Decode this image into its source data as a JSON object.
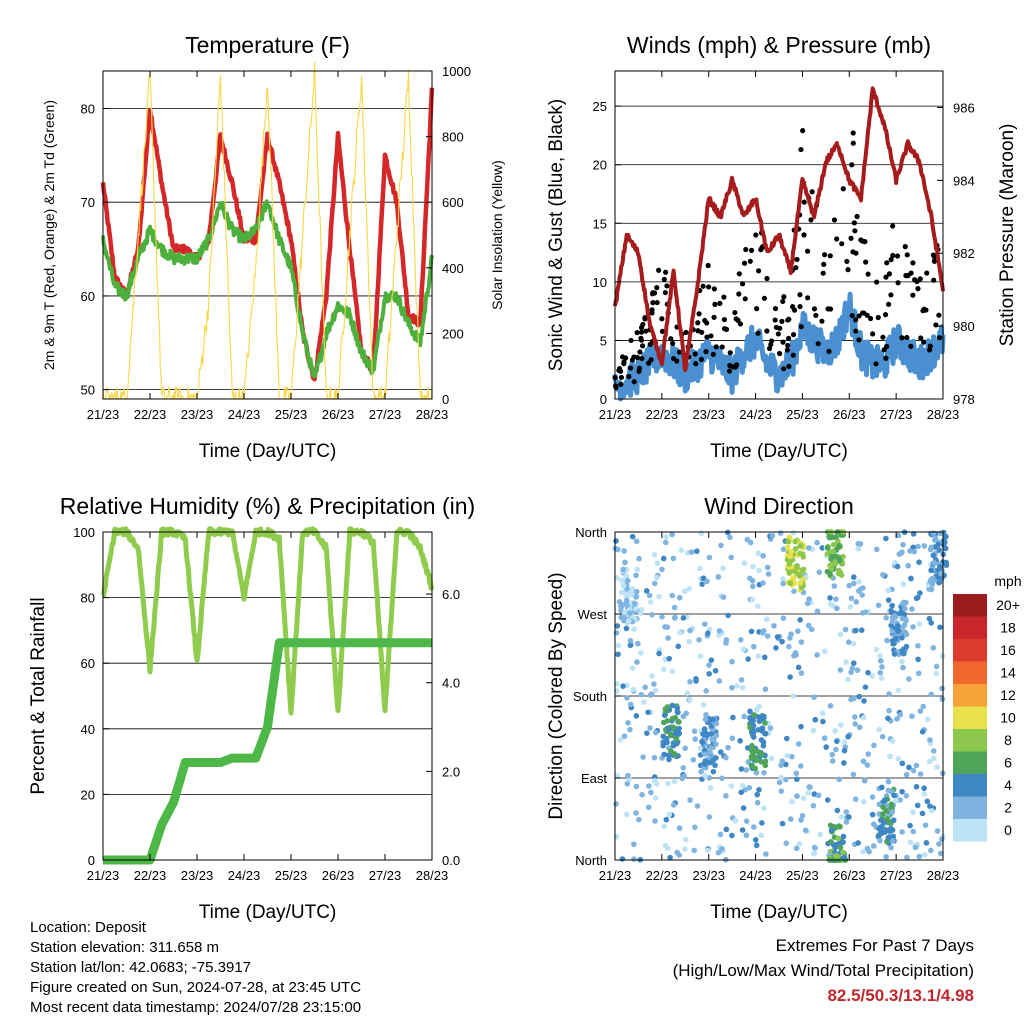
{
  "time_ticks": [
    "21/23",
    "22/23",
    "23/23",
    "24/23",
    "25/23",
    "26/23",
    "27/23",
    "28/23"
  ],
  "time_axis_label": "Time (Day/UTC)",
  "colors": {
    "temp_2m": "#d62728",
    "temp_9m": "#f07b2e",
    "dewpoint": "#4daf3c",
    "insolation": "#f9d74a",
    "wind": "#4a90d0",
    "gust": "#000000",
    "pressure": "#a61b1b",
    "rh": "#8fcc4e",
    "precip": "#4db848",
    "extremes": "#c0272d"
  },
  "chart_data": [
    {
      "id": "temperature",
      "type": "line",
      "title": "Temperature (F)",
      "xlabel": "Time (Day/UTC)",
      "ylabel": "2m & 9m T (Red, Orange) & 2m Td (Green)",
      "ylabel_right": "Solar Insolation (Yellow)",
      "ylim": [
        49,
        84
      ],
      "yticks": [
        "50",
        "60",
        "70",
        "80"
      ],
      "ylim_right": [
        0,
        1000
      ],
      "yticks_right": [
        "0",
        "200",
        "400",
        "600",
        "800",
        "1000"
      ],
      "x": [
        0,
        0.25,
        0.5,
        0.75,
        1,
        1.25,
        1.5,
        1.75,
        2,
        2.25,
        2.5,
        2.75,
        3,
        3.25,
        3.5,
        3.75,
        4,
        4.25,
        4.5,
        4.75,
        5,
        5.25,
        5.5,
        5.75,
        6,
        6.25,
        6.5,
        6.75,
        7
      ],
      "series": [
        {
          "name": "2m T",
          "values": [
            72,
            62,
            60,
            65,
            80,
            72,
            65,
            65,
            64,
            66,
            77,
            72,
            66,
            66,
            77,
            72,
            66,
            56,
            51,
            60,
            77,
            65,
            54,
            52,
            75,
            70,
            58,
            57,
            82
          ]
        },
        {
          "name": "2m Td",
          "values": [
            66,
            61,
            60,
            64,
            67,
            65,
            64,
            64,
            64,
            66,
            70,
            67,
            66,
            67,
            70,
            66,
            63,
            56,
            51,
            56,
            59,
            58,
            54,
            52,
            60,
            60,
            57,
            55,
            64
          ]
        },
        {
          "name": "Solar Insolation",
          "axis": "right",
          "values": [
            0,
            0,
            0,
            500,
            980,
            0,
            0,
            0,
            0,
            300,
            990,
            0,
            0,
            400,
            980,
            0,
            0,
            500,
            990,
            0,
            0,
            500,
            980,
            0,
            0,
            500,
            980,
            0,
            0
          ]
        }
      ]
    },
    {
      "id": "winds",
      "type": "line",
      "title": "Winds (mph) & Pressure (mb)",
      "xlabel": "Time (Day/UTC)",
      "ylabel": "Sonic Wind & Gust (Blue, Black)",
      "ylabel_right": "Station Pressure (Maroon)",
      "ylim": [
        0,
        28
      ],
      "yticks": [
        "0",
        "5",
        "10",
        "15",
        "20",
        "25"
      ],
      "ylim_right": [
        978,
        987
      ],
      "yticks_right": [
        "978",
        "980",
        "982",
        "984",
        "986"
      ],
      "x": [
        0,
        0.25,
        0.5,
        0.75,
        1,
        1.25,
        1.5,
        1.75,
        2,
        2.25,
        2.5,
        2.75,
        3,
        3.25,
        3.5,
        3.75,
        4,
        4.25,
        4.5,
        4.75,
        5,
        5.25,
        5.5,
        5.75,
        6,
        6.25,
        6.5,
        6.75,
        7
      ],
      "series": [
        {
          "name": "Sonic Wind",
          "values": [
            1,
            1.5,
            2,
            3,
            4,
            3,
            2,
            3,
            4,
            3,
            2,
            4,
            5,
            3,
            2,
            3,
            6,
            5,
            4,
            5,
            8,
            4,
            3,
            3,
            5,
            4,
            3,
            4,
            5
          ]
        },
        {
          "name": "Gust",
          "values": [
            2,
            3,
            4,
            6,
            9,
            7,
            4,
            6,
            8,
            7,
            5,
            9,
            12,
            7,
            5,
            7,
            16,
            13,
            8,
            11,
            18,
            10,
            7,
            7,
            12,
            9,
            7,
            9,
            11
          ]
        },
        {
          "name": "Station Pressure",
          "axis": "right",
          "values": [
            980.5,
            982.5,
            982,
            980,
            979,
            981.5,
            978.8,
            981,
            983.5,
            983,
            984,
            983,
            983.5,
            982,
            982.5,
            981.5,
            984,
            983,
            984.5,
            985,
            984,
            983.5,
            986.5,
            985.5,
            984,
            985,
            984.5,
            983,
            981
          ]
        }
      ]
    },
    {
      "id": "humidity",
      "type": "line",
      "title": "Relative Humidity (%) & Precipitation (in)",
      "xlabel": "Time (Day/UTC)",
      "ylabel": "Percent & Total Rainfall",
      "ylim": [
        0,
        100
      ],
      "yticks": [
        "0",
        "20",
        "40",
        "60",
        "80",
        "100"
      ],
      "ylim_right": [
        0,
        7.4
      ],
      "yticks_right": [
        "0.0",
        "2.0",
        "4.0",
        "6.0"
      ],
      "x": [
        0,
        0.25,
        0.5,
        0.75,
        1,
        1.25,
        1.5,
        1.75,
        2,
        2.25,
        2.5,
        2.75,
        3,
        3.25,
        3.5,
        3.75,
        4,
        4.25,
        4.5,
        4.75,
        5,
        5.25,
        5.5,
        5.75,
        6,
        6.25,
        6.5,
        6.75,
        7
      ],
      "series": [
        {
          "name": "Relative Humidity",
          "values": [
            80,
            100,
            100,
            95,
            58,
            100,
            100,
            98,
            60,
            100,
            100,
            100,
            80,
            100,
            100,
            98,
            45,
            100,
            100,
            95,
            45,
            100,
            100,
            97,
            45,
            100,
            100,
            95,
            83
          ]
        },
        {
          "name": "Total Precipitation",
          "axis": "right",
          "values": [
            0,
            0,
            0,
            0,
            0,
            0.8,
            1.3,
            2.2,
            2.2,
            2.2,
            2.2,
            2.3,
            2.3,
            2.3,
            3.0,
            4.9,
            4.9,
            4.9,
            4.9,
            4.9,
            4.9,
            4.9,
            4.9,
            4.9,
            4.9,
            4.9,
            4.9,
            4.9,
            4.9
          ]
        }
      ]
    },
    {
      "id": "wind_direction",
      "type": "scatter",
      "title": "Wind Direction",
      "xlabel": "Time (Day/UTC)",
      "ylabel": "Direction (Colored By Speed)",
      "ylim": [
        0,
        360
      ],
      "yticks": [
        "North",
        "East",
        "South",
        "West",
        "North"
      ],
      "legend": {
        "title": "mph",
        "labels": [
          "20+",
          "18",
          "16",
          "14",
          "12",
          "10",
          "8",
          "6",
          "4",
          "2",
          "0"
        ],
        "colors": [
          "#9b1c1c",
          "#c8262a",
          "#dc3b2e",
          "#f0682d",
          "#f7a33a",
          "#e8e14d",
          "#8dc74e",
          "#4ea55a",
          "#3f86c4",
          "#7fb4e0",
          "#bde3f6"
        ]
      },
      "clusters": [
        {
          "x": 0.3,
          "dir": 290,
          "speed": 1
        },
        {
          "x": 1.2,
          "dir": 140,
          "speed": 5
        },
        {
          "x": 2.0,
          "dir": 130,
          "speed": 3
        },
        {
          "x": 3.05,
          "dir": 130,
          "speed": 5
        },
        {
          "x": 3.85,
          "dir": 325,
          "speed": 9
        },
        {
          "x": 4.7,
          "dir": 340,
          "speed": 7
        },
        {
          "x": 4.75,
          "dir": 10,
          "speed": 6
        },
        {
          "x": 5.8,
          "dir": 50,
          "speed": 4
        },
        {
          "x": 6.05,
          "dir": 255,
          "speed": 3
        },
        {
          "x": 6.9,
          "dir": 330,
          "speed": 3
        }
      ]
    }
  ],
  "info": {
    "location": "Location: Deposit",
    "elevation": "Station elevation: 311.658 m",
    "latlon": "Station lat/lon: 42.0683; -75.3917",
    "created": "Figure created on Sun, 2024-07-28, at 23:45 UTC",
    "latest": "Most recent data timestamp: 2024/07/28 23:15:00"
  },
  "extremes": {
    "line1": "Extremes For Past 7 Days",
    "line2": "(High/Low/Max Wind/Total Precipitation)",
    "values": "82.5/50.3/13.1/4.98"
  }
}
